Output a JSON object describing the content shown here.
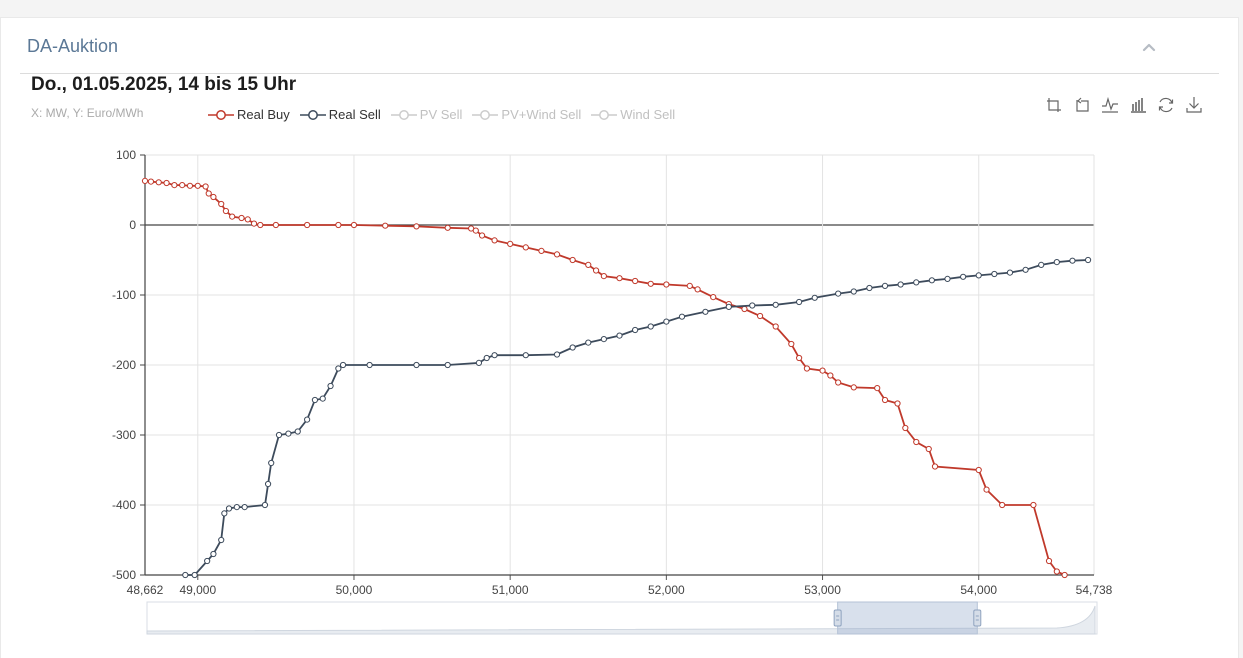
{
  "panel": {
    "title": "DA-Auktion"
  },
  "chart_heading": "Do., 01.05.2025, 14 bis 15 Uhr",
  "units_label": "X: MW, Y: Euro/MWh",
  "legend": [
    {
      "name": "Real Buy",
      "color": "#c0392b",
      "active": true
    },
    {
      "name": "Real Sell",
      "color": "#3d4b5c",
      "active": true
    },
    {
      "name": "PV Sell",
      "color": "#cccccc",
      "active": false
    },
    {
      "name": "PV+Wind Sell",
      "color": "#cccccc",
      "active": false
    },
    {
      "name": "Wind Sell",
      "color": "#cccccc",
      "active": false
    }
  ],
  "toolbox": [
    "zoom-icon",
    "zoom-reset-icon",
    "line-chart-icon",
    "bar-chart-icon",
    "refresh-icon",
    "download-icon"
  ],
  "chart_data": {
    "type": "line",
    "xlabel": "",
    "ylabel": "",
    "xlim": [
      48662,
      54738
    ],
    "ylim": [
      -500,
      100
    ],
    "x_ticks": [
      49000,
      50000,
      51000,
      52000,
      53000,
      54000
    ],
    "x_tick_labels": [
      "49,000",
      "50,000",
      "51,000",
      "52,000",
      "53,000",
      "54,000"
    ],
    "x_edge_labels": [
      "48,662",
      "54,738"
    ],
    "y_ticks": [
      100,
      0,
      -100,
      -200,
      -300,
      -400,
      -500
    ],
    "y_tick_labels": [
      "100",
      "0",
      "-100",
      "-200",
      "-300",
      "-400",
      "-500"
    ],
    "grid": true,
    "legend_position": "top-left",
    "series": [
      {
        "name": "Real Buy",
        "color": "#c0392b",
        "points": [
          [
            48662,
            63
          ],
          [
            48700,
            62
          ],
          [
            48750,
            61
          ],
          [
            48800,
            60
          ],
          [
            48850,
            57
          ],
          [
            48900,
            57
          ],
          [
            48950,
            56
          ],
          [
            49000,
            56
          ],
          [
            49050,
            55
          ],
          [
            49070,
            45
          ],
          [
            49100,
            40
          ],
          [
            49150,
            30
          ],
          [
            49180,
            20
          ],
          [
            49220,
            12
          ],
          [
            49280,
            10
          ],
          [
            49320,
            8
          ],
          [
            49360,
            2
          ],
          [
            49400,
            0
          ],
          [
            49500,
            0
          ],
          [
            49700,
            0
          ],
          [
            49900,
            0
          ],
          [
            50000,
            0
          ],
          [
            50200,
            -1
          ],
          [
            50400,
            -2
          ],
          [
            50600,
            -4
          ],
          [
            50750,
            -5
          ],
          [
            50780,
            -8
          ],
          [
            50820,
            -15
          ],
          [
            50900,
            -22
          ],
          [
            51000,
            -27
          ],
          [
            51100,
            -32
          ],
          [
            51200,
            -37
          ],
          [
            51300,
            -42
          ],
          [
            51400,
            -50
          ],
          [
            51500,
            -57
          ],
          [
            51550,
            -65
          ],
          [
            51600,
            -73
          ],
          [
            51700,
            -76
          ],
          [
            51800,
            -80
          ],
          [
            51900,
            -84
          ],
          [
            52000,
            -85
          ],
          [
            52150,
            -87
          ],
          [
            52200,
            -92
          ],
          [
            52300,
            -103
          ],
          [
            52400,
            -113
          ],
          [
            52500,
            -120
          ],
          [
            52600,
            -130
          ],
          [
            52700,
            -145
          ],
          [
            52800,
            -170
          ],
          [
            52850,
            -190
          ],
          [
            52900,
            -205
          ],
          [
            53000,
            -208
          ],
          [
            53050,
            -215
          ],
          [
            53100,
            -225
          ],
          [
            53200,
            -232
          ],
          [
            53350,
            -233
          ],
          [
            53400,
            -250
          ],
          [
            53480,
            -255
          ],
          [
            53530,
            -290
          ],
          [
            53600,
            -310
          ],
          [
            53680,
            -320
          ],
          [
            53720,
            -345
          ],
          [
            54000,
            -350
          ],
          [
            54050,
            -378
          ],
          [
            54150,
            -400
          ],
          [
            54350,
            -400
          ],
          [
            54450,
            -480
          ],
          [
            54500,
            -495
          ],
          [
            54550,
            -500
          ]
        ]
      },
      {
        "name": "Real Sell",
        "color": "#3d4b5c",
        "points": [
          [
            48920,
            -500
          ],
          [
            48980,
            -500
          ],
          [
            49060,
            -480
          ],
          [
            49100,
            -470
          ],
          [
            49150,
            -450
          ],
          [
            49170,
            -412
          ],
          [
            49200,
            -405
          ],
          [
            49250,
            -403
          ],
          [
            49300,
            -403
          ],
          [
            49430,
            -400
          ],
          [
            49450,
            -370
          ],
          [
            49470,
            -340
          ],
          [
            49520,
            -300
          ],
          [
            49580,
            -298
          ],
          [
            49640,
            -295
          ],
          [
            49700,
            -278
          ],
          [
            49750,
            -250
          ],
          [
            49800,
            -248
          ],
          [
            49850,
            -230
          ],
          [
            49900,
            -205
          ],
          [
            49930,
            -200
          ],
          [
            50100,
            -200
          ],
          [
            50400,
            -200
          ],
          [
            50600,
            -200
          ],
          [
            50800,
            -197
          ],
          [
            50850,
            -190
          ],
          [
            50900,
            -186
          ],
          [
            51100,
            -186
          ],
          [
            51300,
            -185
          ],
          [
            51400,
            -175
          ],
          [
            51500,
            -168
          ],
          [
            51600,
            -163
          ],
          [
            51700,
            -158
          ],
          [
            51800,
            -150
          ],
          [
            51900,
            -145
          ],
          [
            52000,
            -138
          ],
          [
            52100,
            -131
          ],
          [
            52250,
            -124
          ],
          [
            52400,
            -117
          ],
          [
            52550,
            -115
          ],
          [
            52700,
            -114
          ],
          [
            52850,
            -110
          ],
          [
            52950,
            -104
          ],
          [
            53100,
            -98
          ],
          [
            53200,
            -95
          ],
          [
            53300,
            -90
          ],
          [
            53400,
            -87
          ],
          [
            53500,
            -85
          ],
          [
            53600,
            -82
          ],
          [
            53700,
            -79
          ],
          [
            53800,
            -77
          ],
          [
            53900,
            -74
          ],
          [
            54000,
            -72
          ],
          [
            54100,
            -70
          ],
          [
            54200,
            -68
          ],
          [
            54300,
            -64
          ],
          [
            54400,
            -57
          ],
          [
            54500,
            -53
          ],
          [
            54600,
            -51
          ],
          [
            54700,
            -50
          ]
        ]
      }
    ]
  },
  "datazoom": {
    "start": 0.727,
    "end": 0.874
  }
}
